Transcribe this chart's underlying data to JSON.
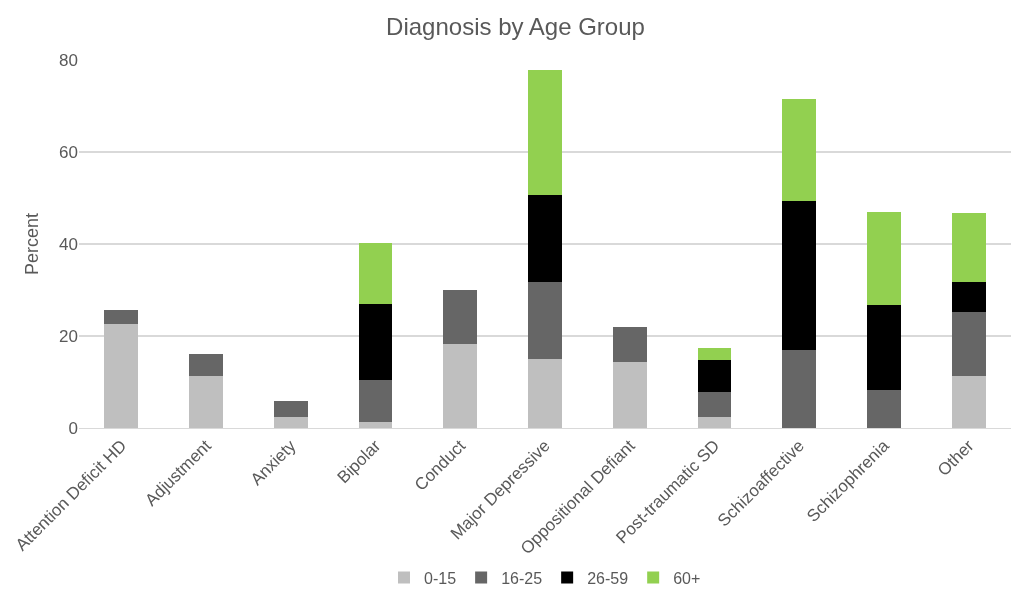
{
  "chart_data": {
    "type": "bar",
    "title": "Diagnosis by Age Group",
    "ylabel": "Percent",
    "categories": [
      "Attention Deficit HD",
      "Adjustment",
      "Anxiety",
      "Bipolar",
      "Conduct",
      "Major Depressive",
      "Oppositional Defiant",
      "Post-traumatic SD",
      "Schizoaffective",
      "Schizophrenia",
      "Other"
    ],
    "series": [
      {
        "name": "0-15",
        "color": "#bfbfbf",
        "values": [
          22.6,
          11.4,
          2.4,
          1.3,
          18.2,
          15.0,
          14.3,
          2.4,
          0,
          0,
          11.2
        ]
      },
      {
        "name": "16-25",
        "color": "#666666",
        "values": [
          3.1,
          4.7,
          3.4,
          9.2,
          11.8,
          16.8,
          7.6,
          5.4,
          17.0,
          8.2,
          14.1
        ]
      },
      {
        "name": "26-59",
        "color": "#000000",
        "values": [
          0,
          0,
          0,
          16.5,
          0,
          18.9,
          0,
          7.0,
          32.4,
          18.6,
          6.5
        ]
      },
      {
        "name": "60+",
        "color": "#92d050",
        "values": [
          0,
          0,
          0,
          13.3,
          0,
          27.2,
          0,
          2.6,
          22.2,
          20.1,
          14.9
        ]
      }
    ],
    "stacked": true,
    "ylim": [
      0,
      80
    ],
    "yticks": [
      0,
      20,
      40,
      60,
      80
    ],
    "grid": "y",
    "legend": "bottom"
  }
}
